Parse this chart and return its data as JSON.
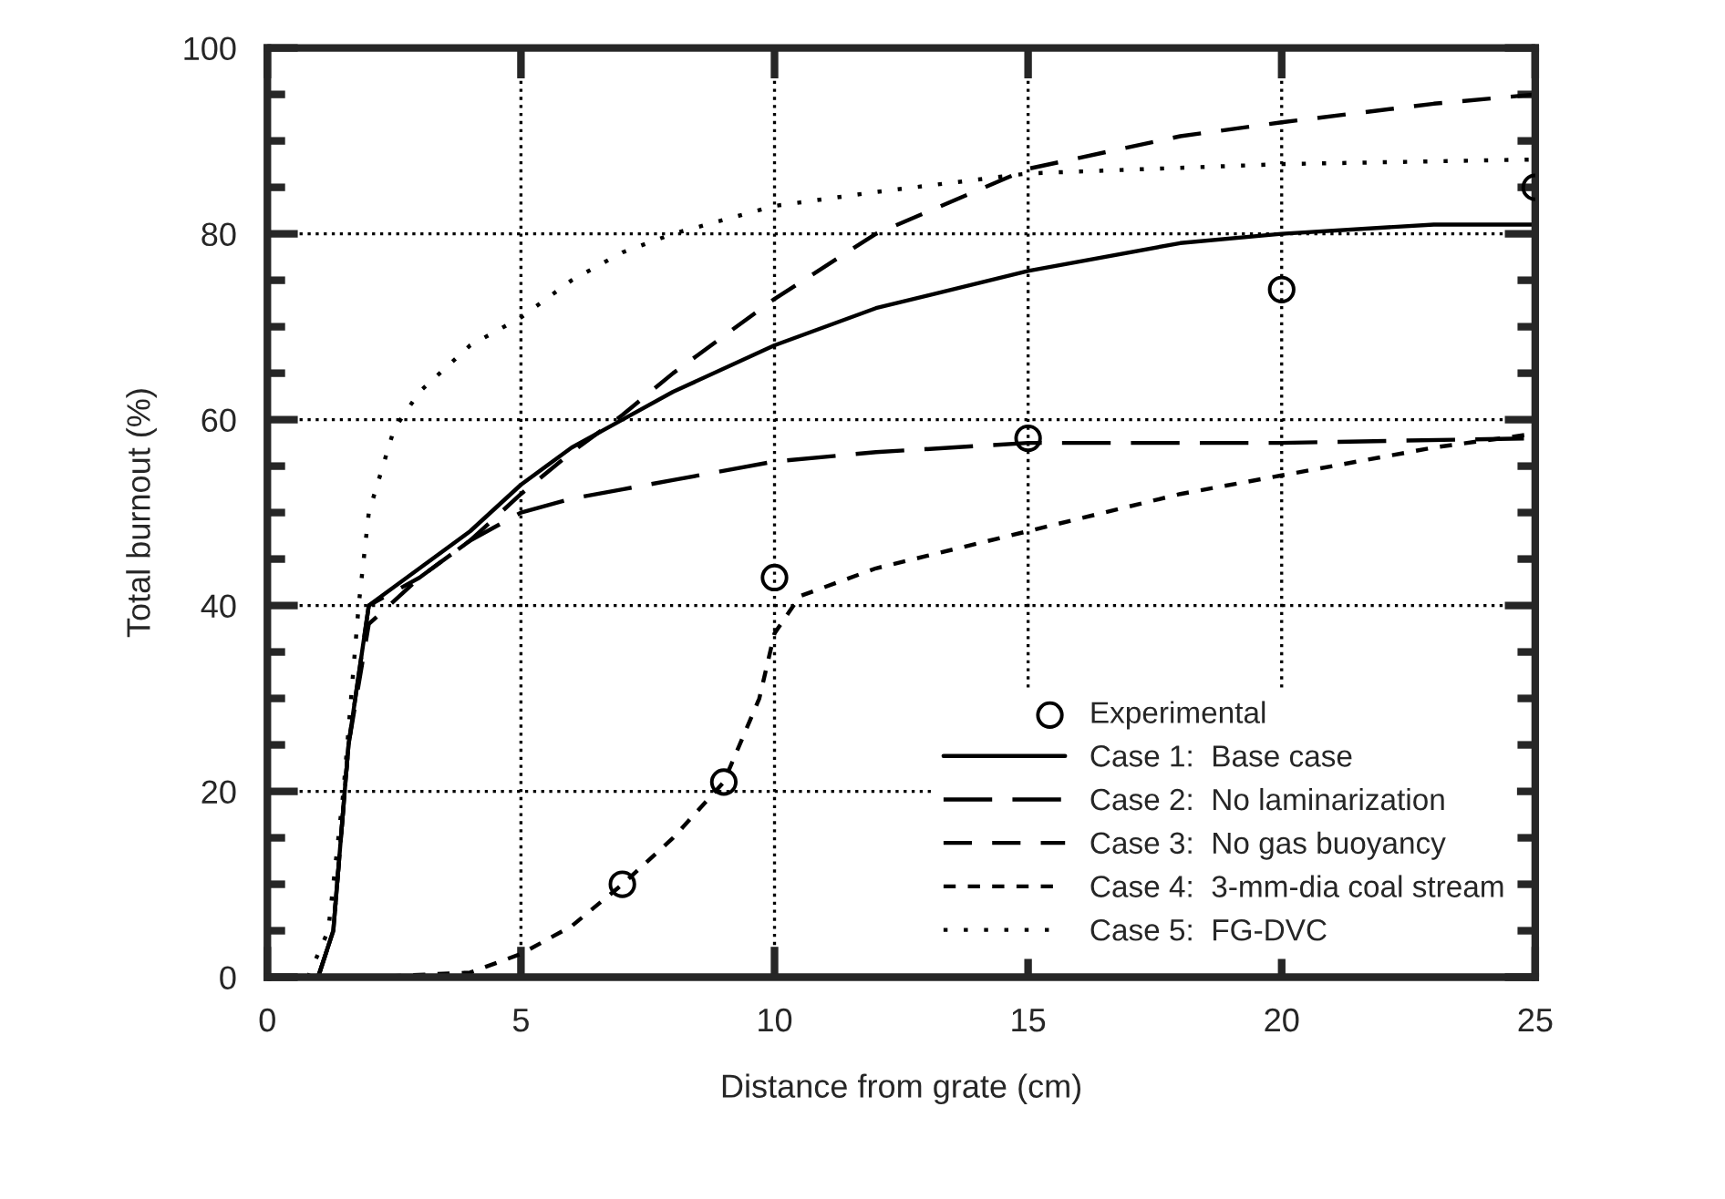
{
  "chart_data": {
    "type": "line",
    "xlabel": "Distance from grate (cm)",
    "ylabel": "Total burnout (%)",
    "xlim": [
      0,
      25
    ],
    "xticks": [
      0,
      5,
      10,
      15,
      20,
      25
    ],
    "ylim": [
      0,
      100
    ],
    "yticks": [
      0,
      20,
      40,
      60,
      80,
      100
    ],
    "grid": true,
    "legend": "bottom right",
    "series": [
      {
        "name": "Experimental",
        "type": "scatter",
        "marker": "circle",
        "color": "#000000",
        "x": [
          7,
          9,
          10,
          15,
          20,
          25
        ],
        "values": [
          10,
          21,
          43,
          58,
          74,
          85
        ]
      },
      {
        "name": "Case 1:  Base case",
        "line_style": "solid",
        "color": "#000000",
        "x": [
          1,
          1.3,
          1.6,
          2,
          3,
          4,
          5,
          6,
          7,
          8,
          10,
          12,
          15,
          18,
          20,
          23,
          25
        ],
        "values": [
          0,
          5,
          25,
          40,
          44,
          48,
          53,
          57,
          60,
          63,
          68,
          72,
          76,
          79,
          80,
          81,
          81
        ]
      },
      {
        "name": "Case 2:  No laminarization",
        "line_style": "dashed",
        "color": "#000000",
        "x": [
          1,
          1.3,
          1.6,
          2,
          3,
          4,
          5,
          6,
          7,
          8,
          10,
          12,
          15,
          20,
          25
        ],
        "values": [
          0,
          5,
          25,
          40,
          43,
          47,
          50,
          51.5,
          52.5,
          53.5,
          55.5,
          56.5,
          57.5,
          57.5,
          58
        ]
      },
      {
        "name": "Case 3:  No gas buoyancy",
        "line_style": "dashed",
        "color": "#000000",
        "x": [
          1,
          1.3,
          1.6,
          2,
          3,
          4,
          5,
          6,
          7,
          8,
          10,
          12,
          15,
          18,
          20,
          23,
          25
        ],
        "values": [
          0,
          5,
          25,
          38,
          43,
          47,
          52,
          56.5,
          60.5,
          65,
          73,
          80,
          87,
          90.5,
          92,
          94,
          95
        ]
      },
      {
        "name": "Case 4:  3-mm-dia coal stream",
        "line_style": "dashed",
        "color": "#000000",
        "x": [
          0,
          2,
          4,
          5,
          6,
          7,
          8,
          9,
          9.7,
          10,
          10.5,
          12,
          15,
          18,
          20,
          23,
          25
        ],
        "values": [
          0,
          0,
          0.5,
          2.5,
          5.5,
          10,
          15,
          21,
          30,
          37,
          41,
          44,
          48,
          52,
          54,
          57,
          58.5
        ]
      },
      {
        "name": "Case 5:  FG-DVC",
        "line_style": "dotted",
        "color": "#000000",
        "x": [
          0.8,
          1.2,
          1.5,
          1.8,
          2,
          2.5,
          3,
          4,
          5,
          6,
          7,
          8,
          10,
          12,
          15,
          20,
          25
        ],
        "values": [
          0,
          5,
          20,
          40,
          50,
          59,
          63,
          68,
          71,
          75,
          78,
          80,
          83,
          84.5,
          86.5,
          87.5,
          88
        ]
      }
    ]
  }
}
